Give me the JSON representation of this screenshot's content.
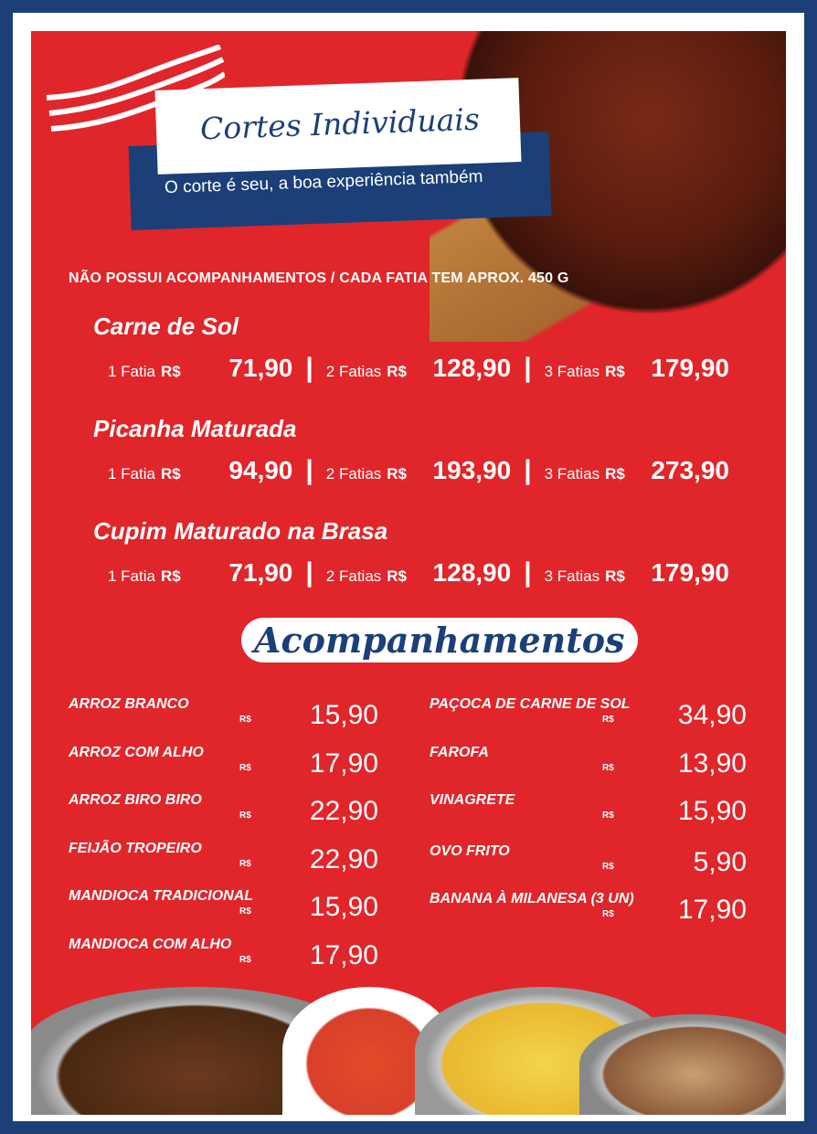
{
  "header": {
    "title": "Cortes Individuais",
    "subtitle": "O corte é seu, a boa experiência também"
  },
  "note": "NÃO POSSUI ACOMPANHAMENTOS / CADA FATIA TEM APROX. 450 G",
  "currency": "R$",
  "cuts": [
    {
      "name": "Carne de Sol",
      "prices": [
        {
          "qty": "1 Fatia",
          "value": "71,90"
        },
        {
          "qty": "2 Fatias",
          "value": "128,90"
        },
        {
          "qty": "3 Fatias",
          "value": "179,90"
        }
      ]
    },
    {
      "name": "Picanha Maturada",
      "prices": [
        {
          "qty": "1 Fatia",
          "value": "94,90"
        },
        {
          "qty": "2 Fatias",
          "value": "193,90"
        },
        {
          "qty": "3 Fatias",
          "value": "273,90"
        }
      ]
    },
    {
      "name": "Cupim Maturado na Brasa",
      "prices": [
        {
          "qty": "1 Fatia",
          "value": "71,90"
        },
        {
          "qty": "2 Fatias",
          "value": "128,90"
        },
        {
          "qty": "3 Fatias",
          "value": "179,90"
        }
      ]
    }
  ],
  "sides_title": "Acompanhamentos",
  "sides_left": [
    {
      "name": "ARROZ BRANCO",
      "value": "15,90"
    },
    {
      "name": "ARROZ COM ALHO",
      "value": "17,90"
    },
    {
      "name": "ARROZ BIRO BIRO",
      "value": "22,90"
    },
    {
      "name": "FEIJÃO TROPEIRO",
      "value": "22,90"
    },
    {
      "name": "MANDIOCA TRADICIONAL",
      "value": "15,90"
    },
    {
      "name": "MANDIOCA COM ALHO",
      "value": "17,90"
    }
  ],
  "sides_right": [
    {
      "name": "PAÇOCA DE CARNE DE SOL",
      "value": "34,90"
    },
    {
      "name": "FAROFA",
      "value": "13,90"
    },
    {
      "name": "VINAGRETE",
      "value": "15,90"
    },
    {
      "name": "OVO FRITO",
      "value": "5,90"
    },
    {
      "name": "BANANA À MILANESA (3 UN)",
      "value": "17,90"
    }
  ],
  "colors": {
    "red": "#e0262b",
    "blue": "#1c3f78",
    "white": "#ffffff"
  }
}
